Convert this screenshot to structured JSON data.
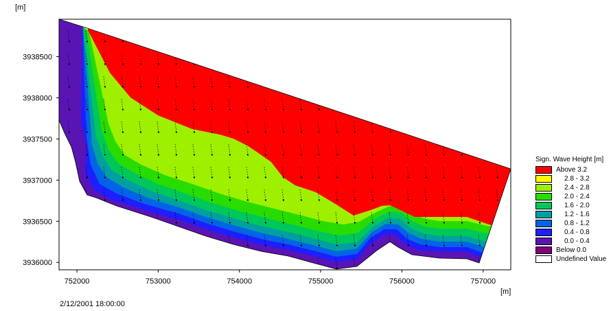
{
  "chart_data": {
    "type": "heatmap",
    "y_unit": "[m]",
    "x_unit": "[m]",
    "xlim": [
      751780,
      757340
    ],
    "ylim": [
      3935910,
      3938955
    ],
    "x_ticks": [
      752000,
      753000,
      754000,
      755000,
      756000,
      757000
    ],
    "y_ticks": [
      3936000,
      3936500,
      3937000,
      3937500,
      3938000,
      3938500
    ],
    "grid": false,
    "legend_position": "right",
    "legend": {
      "title": "Sign. Wave Height [m]",
      "entries": [
        {
          "label": "Above 3.2",
          "color": "#ff0000"
        },
        {
          "label": "2.8 - 3.2",
          "color": "#ffff00"
        },
        {
          "label": "2.4 - 2.8",
          "color": "#9cf000"
        },
        {
          "label": "2.0 - 2.4",
          "color": "#28dc00"
        },
        {
          "label": "1.6 - 2.0",
          "color": "#00c75a"
        },
        {
          "label": "1.2 - 1.6",
          "color": "#00a0a0"
        },
        {
          "label": "0.8 - 1.2",
          "color": "#0064e6"
        },
        {
          "label": "0.4 - 0.8",
          "color": "#1e1eff"
        },
        {
          "label": "0.0 - 0.4",
          "color": "#5a14b4"
        },
        {
          "label": "Below 0.0",
          "color": "#800080"
        },
        {
          "label": "Undefined Value",
          "color": "#ffffff"
        }
      ]
    },
    "timestamp": "2/12/2001 18:00:00"
  }
}
